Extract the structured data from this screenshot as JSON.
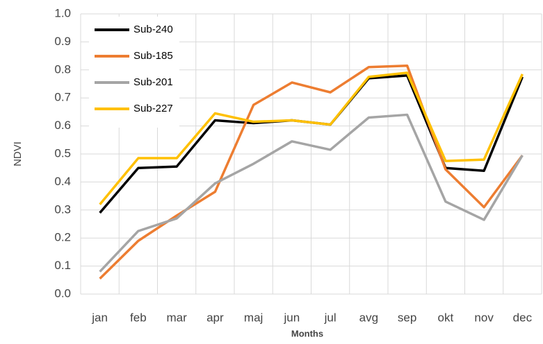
{
  "chart_data": {
    "type": "line",
    "x_label": "Months",
    "y_label": "NDVI",
    "categories": [
      "jan",
      "feb",
      "mar",
      "apr",
      "maj",
      "jun",
      "jul",
      "avg",
      "sep",
      "okt",
      "nov",
      "dec"
    ],
    "series": [
      {
        "name": "Sub-240",
        "color": "#000000",
        "values": [
          0.29,
          0.45,
          0.455,
          0.62,
          0.61,
          0.62,
          0.605,
          0.77,
          0.78,
          0.45,
          0.44,
          0.775
        ]
      },
      {
        "name": "Sub-185",
        "color": "#ed7d31",
        "values": [
          0.055,
          0.19,
          0.28,
          0.365,
          0.675,
          0.755,
          0.72,
          0.81,
          0.815,
          0.445,
          0.31,
          0.495
        ]
      },
      {
        "name": "Sub-201",
        "color": "#a5a5a5",
        "values": [
          0.08,
          0.225,
          0.27,
          0.395,
          0.465,
          0.545,
          0.515,
          0.63,
          0.64,
          0.33,
          0.265,
          0.495
        ]
      },
      {
        "name": "Sub-227",
        "color": "#ffc000",
        "values": [
          0.32,
          0.485,
          0.485,
          0.645,
          0.615,
          0.62,
          0.605,
          0.775,
          0.79,
          0.475,
          0.48,
          0.785
        ]
      }
    ],
    "ylim": [
      0,
      1
    ],
    "yticks": [
      {
        "value": 0,
        "label": "0.0"
      },
      0.1,
      0.2,
      0.3,
      0.4,
      0.5,
      0.6,
      0.7,
      0.8,
      0.9,
      {
        "value": 1,
        "label": "1.0"
      }
    ],
    "grid": true,
    "legend": "upper left"
  }
}
